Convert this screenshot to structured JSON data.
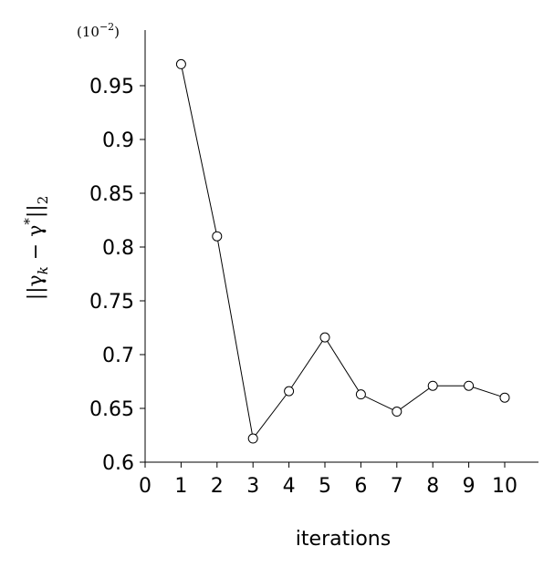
{
  "chart_data": {
    "type": "line",
    "x": [
      1,
      2,
      3,
      4,
      5,
      6,
      7,
      8,
      9,
      10
    ],
    "series": [
      {
        "values": [
          0.97,
          0.81,
          0.622,
          0.666,
          0.716,
          0.663,
          0.647,
          0.671,
          0.671,
          0.66
        ]
      }
    ],
    "xlabel": "iterations",
    "ylabel": "||γk − γ*||2",
    "ylabel_parts": {
      "open": "||γ",
      "sub1": "k",
      "minus": " − γ",
      "sup": "*",
      "close": "||",
      "sub2": "2"
    },
    "scale_note": "(10−2)",
    "scale_note_parts": {
      "base": "(10",
      "exp": "−2",
      "close": ")"
    },
    "xlim": [
      0,
      11
    ],
    "ylim": [
      0.6,
      1.0
    ],
    "x_ticks": [
      "0",
      "1",
      "2",
      "3",
      "4",
      "5",
      "6",
      "7",
      "8",
      "9",
      "10"
    ],
    "y_ticks": [
      "0.6",
      "0.65",
      "0.7",
      "0.75",
      "0.8",
      "0.85",
      "0.9",
      "0.95"
    ],
    "marker": "open-circle",
    "grid": false,
    "line_color": "#000000",
    "marker_fill": "#ffffff"
  }
}
